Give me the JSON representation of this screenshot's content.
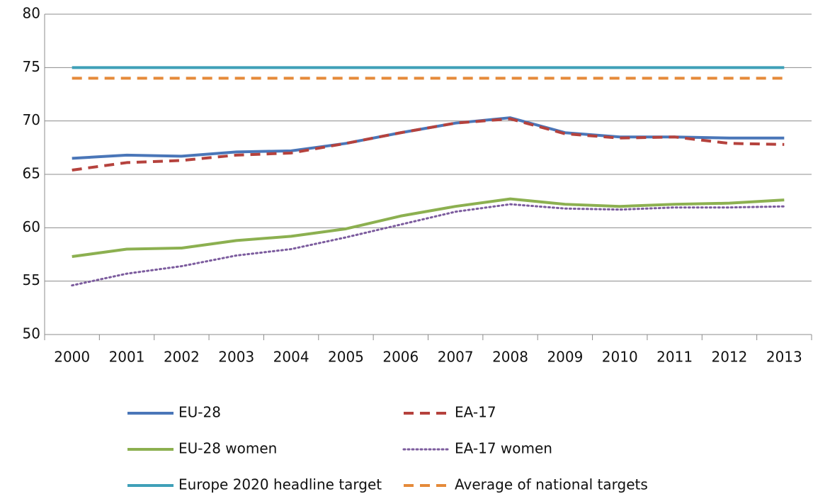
{
  "chart_data": {
    "type": "line",
    "categories": [
      "2000",
      "2001",
      "2002",
      "2003",
      "2004",
      "2005",
      "2006",
      "2007",
      "2008",
      "2009",
      "2010",
      "2011",
      "2012",
      "2013"
    ],
    "ylim": [
      50,
      80
    ],
    "yticks": [
      50,
      55,
      60,
      65,
      70,
      75,
      80
    ],
    "grid": true,
    "legend": "bottom",
    "series": [
      {
        "name": "EU-28",
        "color": "#4a76b8",
        "dash": "solid",
        "values": [
          66.5,
          66.8,
          66.7,
          67.1,
          67.2,
          67.9,
          68.9,
          69.8,
          70.3,
          68.9,
          68.5,
          68.5,
          68.4,
          68.4
        ]
      },
      {
        "name": "EA-17",
        "color": "#b5423d",
        "dash": "dashed",
        "values": [
          65.4,
          66.1,
          66.3,
          66.8,
          67.0,
          67.9,
          68.9,
          69.8,
          70.2,
          68.8,
          68.4,
          68.5,
          67.9,
          67.8
        ]
      },
      {
        "name": "EU-28 women",
        "color": "#8cb050",
        "dash": "solid",
        "values": [
          57.3,
          58.0,
          58.1,
          58.8,
          59.2,
          59.9,
          61.1,
          62.0,
          62.7,
          62.2,
          62.0,
          62.2,
          62.3,
          62.6
        ]
      },
      {
        "name": "EA-17 women",
        "color": "#7c5c9e",
        "dash": "dotted",
        "values": [
          54.6,
          55.7,
          56.4,
          57.4,
          58.0,
          59.1,
          60.3,
          61.5,
          62.2,
          61.8,
          61.7,
          61.9,
          61.9,
          62.0
        ]
      },
      {
        "name": "Europe 2020 headline target",
        "color": "#3fa0b8",
        "dash": "solid",
        "values": [
          75,
          75,
          75,
          75,
          75,
          75,
          75,
          75,
          75,
          75,
          75,
          75,
          75,
          75
        ]
      },
      {
        "name": "Average of national targets",
        "color": "#e58a3a",
        "dash": "dashed",
        "values": [
          74,
          74,
          74,
          74,
          74,
          74,
          74,
          74,
          74,
          74,
          74,
          74,
          74,
          74
        ]
      }
    ]
  }
}
